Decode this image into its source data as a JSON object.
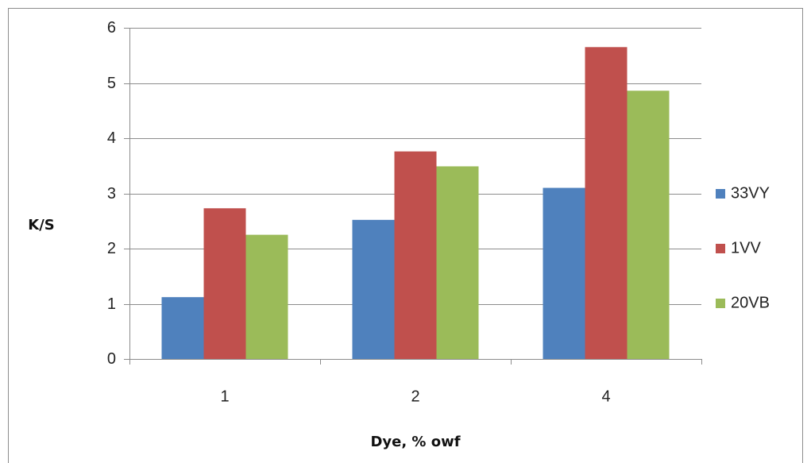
{
  "chart_data": {
    "type": "bar",
    "categories": [
      "1",
      "2",
      "4"
    ],
    "series": [
      {
        "name": "33VY",
        "color": "#4f81bd",
        "values": [
          1.12,
          2.52,
          3.1
        ]
      },
      {
        "name": "1VV",
        "color": "#c0504d",
        "values": [
          2.73,
          3.76,
          5.65
        ]
      },
      {
        "name": "20VB",
        "color": "#9bbb59",
        "values": [
          2.25,
          3.49,
          4.86
        ]
      }
    ],
    "ylim": [
      0,
      6
    ],
    "yticks": [
      0,
      1,
      2,
      3,
      4,
      5,
      6
    ],
    "xlabel": "Dye, % owf",
    "ylabel": "K/S",
    "grid": "horizontal",
    "legend_position": "right"
  }
}
